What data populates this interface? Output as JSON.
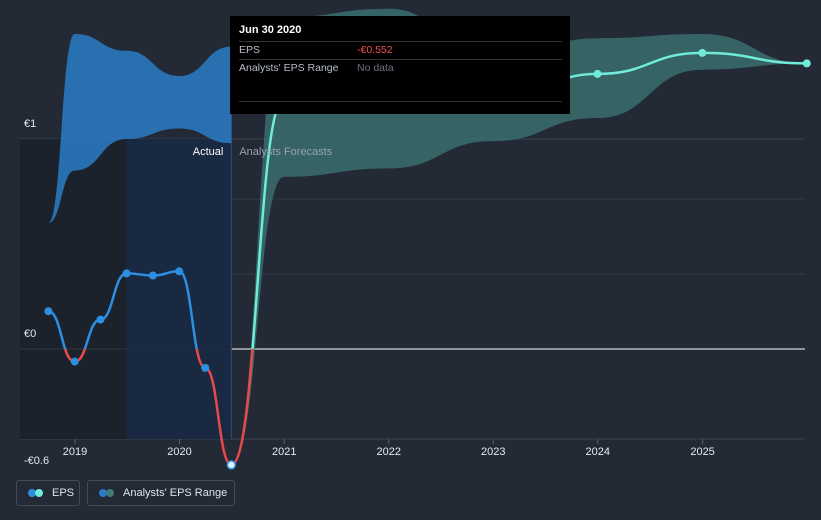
{
  "tooltip": {
    "date": "Jun 30 2020",
    "rows": [
      {
        "label": "EPS",
        "value": "-€0.552"
      },
      {
        "label": "Analysts' EPS Range",
        "value": "No data"
      }
    ]
  },
  "legend": {
    "eps_label": "EPS",
    "range_label": "Analysts' EPS Range"
  },
  "colors": {
    "background": "#232a36",
    "eps_actual": "#2c8fe2",
    "eps_negative": "#e84a4a",
    "eps_forecast": "#6fecd9",
    "range_actual": "#2a7cc7",
    "range_forecast": "#3e7c77"
  },
  "chart_data": {
    "type": "line",
    "y_tick_labels": [
      "€1",
      "€0",
      "-€0.6"
    ],
    "x_tick_labels": [
      "2019",
      "2020",
      "2021",
      "2022",
      "2023",
      "2024",
      "2025"
    ],
    "ylim": [
      -0.6,
      1
    ],
    "section_labels": {
      "actual": "Actual",
      "forecast": "Analysts Forecasts"
    },
    "actual_eps": [
      {
        "x": "2018-09-30",
        "y": 0.18
      },
      {
        "x": "2018-12-31",
        "y": -0.06
      },
      {
        "x": "2019-03-31",
        "y": 0.14
      },
      {
        "x": "2019-06-30",
        "y": 0.36
      },
      {
        "x": "2019-09-30",
        "y": 0.35
      },
      {
        "x": "2019-12-31",
        "y": 0.37
      },
      {
        "x": "2020-03-31",
        "y": -0.09
      },
      {
        "x": "2020-06-30",
        "y": -0.552
      }
    ],
    "forecast_eps": [
      {
        "x": "2020-06-30",
        "y": -0.552
      },
      {
        "x": "2020-12-31",
        "y": 1.19
      },
      {
        "x": "2021-12-31",
        "y": 1.16
      },
      {
        "x": "2022-12-31",
        "y": 1.18
      },
      {
        "x": "2023-12-31",
        "y": 1.31
      },
      {
        "x": "2024-12-31",
        "y": 1.41
      },
      {
        "x": "2025-12-31",
        "y": 1.36
      }
    ],
    "actual_range": {
      "x": [
        "2018-09-30",
        "2018-12-31",
        "2019-06-30",
        "2019-12-31",
        "2020-06-30"
      ],
      "high": [
        0.6,
        1.5,
        1.42,
        1.3,
        1.44
      ],
      "low": [
        0.6,
        0.85,
        1.0,
        1.05,
        0.98
      ]
    },
    "forecast_range": {
      "x": [
        "2020-06-30",
        "2020-12-31",
        "2021-12-31",
        "2022-12-31",
        "2023-12-31",
        "2024-12-31",
        "2025-12-31"
      ],
      "high": [
        -0.552,
        1.58,
        1.62,
        1.38,
        1.48,
        1.5,
        1.36
      ],
      "low": [
        -0.552,
        0.82,
        0.86,
        0.99,
        1.1,
        1.33,
        1.36
      ]
    },
    "grid": true
  }
}
